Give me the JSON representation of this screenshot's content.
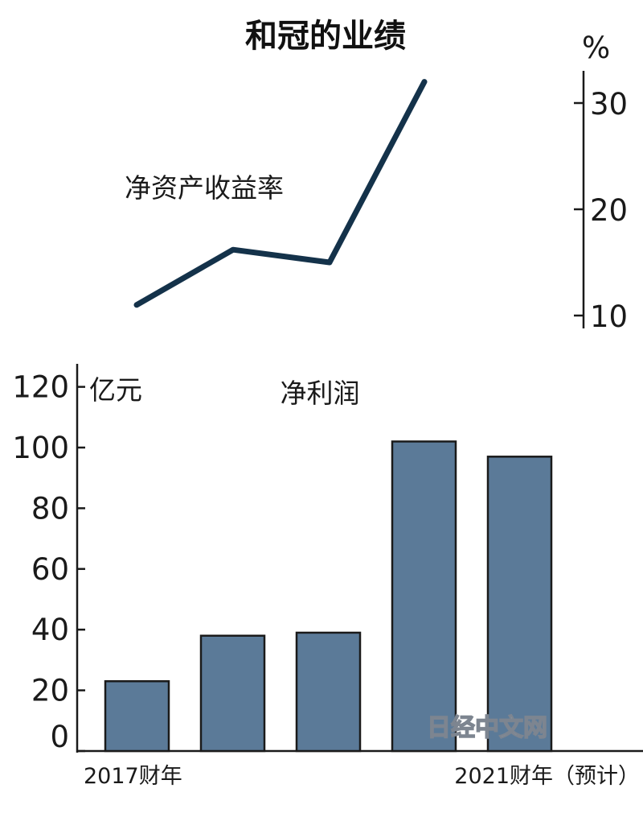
{
  "title": "和冠的业绩",
  "watermark": "日经中文网",
  "colors": {
    "line": "#14324a",
    "bar_fill": "#5b7a98",
    "bar_stroke": "#1a1a1a",
    "axis": "#1a1a1a"
  },
  "chart_data": [
    {
      "type": "line",
      "series": [
        {
          "name": "净资产收益率",
          "values": [
            11,
            16.2,
            15,
            32
          ]
        }
      ],
      "yunit": "%",
      "ylim": [
        10,
        33
      ],
      "yticks": [
        10,
        20,
        30
      ],
      "yaxis_position": "right",
      "grid": false,
      "legend": "none"
    },
    {
      "type": "bar",
      "categories": [
        "2017财年",
        "",
        "",
        "",
        "2021财年（预计）"
      ],
      "series": [
        {
          "name": "净利润",
          "values": [
            23,
            38,
            39,
            102,
            97
          ]
        }
      ],
      "yunit": "亿元",
      "ylim": [
        0,
        120
      ],
      "yticks": [
        0,
        20,
        40,
        60,
        80,
        100,
        120
      ],
      "yaxis_position": "left",
      "grid": false,
      "legend": "none"
    }
  ]
}
